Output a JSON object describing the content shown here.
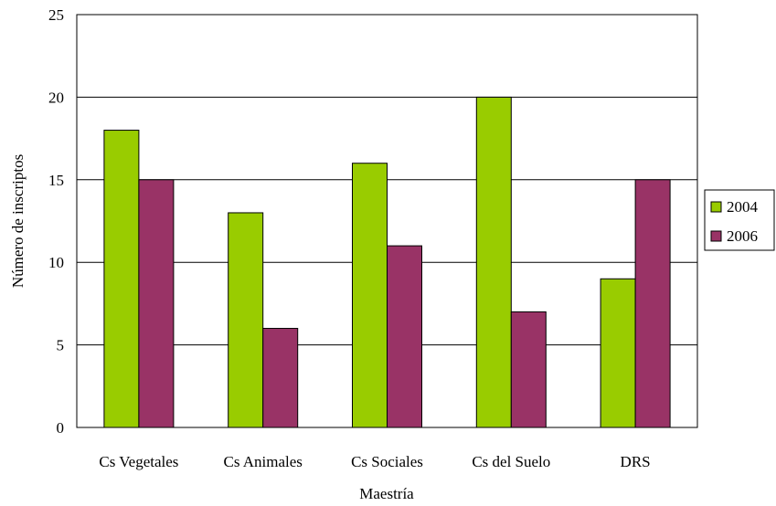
{
  "chart_data": {
    "type": "bar",
    "categories": [
      "Cs Vegetales",
      "Cs Animales",
      "Cs Sociales",
      "Cs del Suelo",
      "DRS"
    ],
    "series": [
      {
        "name": "2004",
        "values": [
          18,
          13,
          16,
          20,
          9
        ],
        "color": "#99cc00"
      },
      {
        "name": "2006",
        "values": [
          15,
          6,
          11,
          7,
          15
        ],
        "color": "#993366"
      }
    ],
    "xlabel": "Maestría",
    "ylabel": "Número de inscriptos",
    "ylim": [
      0,
      25
    ],
    "yticks": [
      "0",
      "5",
      "10",
      "15",
      "20",
      "25"
    ],
    "grid": true,
    "legend_position": "right"
  }
}
